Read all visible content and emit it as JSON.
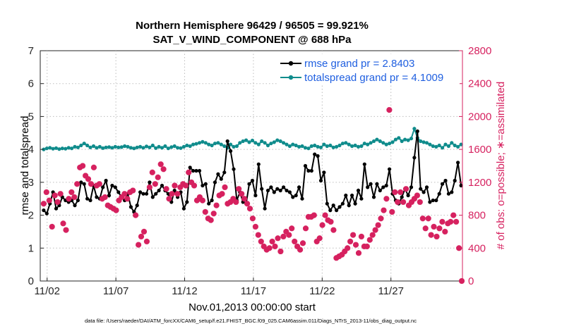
{
  "chart_data": {
    "type": "line",
    "title": "Northern Hemisphere 96429 / 96505 = 99.921%",
    "subtitle": "SAT_V_WIND_COMPONENT @ 688 hPa",
    "xlabel": "Nov.01,2013 00:00:00 start",
    "ylabel_left": "rmse and totalspread",
    "ylabel_right": "# of obs: o=possible; ∗=assimilated",
    "ylim_left": [
      0,
      7
    ],
    "ylim_right": [
      0,
      2800
    ],
    "yticks_left": [
      "0",
      "1",
      "2",
      "3",
      "4",
      "5",
      "6",
      "7"
    ],
    "yticks_right": [
      "0",
      "400",
      "800",
      "1200",
      "1600",
      "2000",
      "2400",
      "2800"
    ],
    "xlim_days": [
      0.5,
      31.2
    ],
    "xtick_days": [
      1,
      6,
      11,
      16,
      21,
      26
    ],
    "xticks": [
      "11/02",
      "11/07",
      "11/12",
      "11/17",
      "11/22",
      "11/27"
    ],
    "series": [
      {
        "name": "rmse grand pr = 2.8403",
        "color": "#000000",
        "axis": "left",
        "values": [
          2.15,
          2.05,
          2.35,
          2.7,
          2.2,
          2.3,
          2.55,
          2.45,
          2.4,
          2.45,
          2.3,
          2.45,
          3.0,
          2.95,
          2.5,
          2.45,
          2.9,
          2.55,
          2.5,
          2.85,
          3.05,
          2.6,
          2.9,
          2.85,
          2.7,
          2.55,
          2.45,
          2.65,
          2.25,
          2.1,
          2.3,
          2.7,
          2.65,
          2.65,
          3.0,
          2.55,
          2.65,
          2.75,
          2.9,
          2.75,
          2.65,
          2.4,
          2.75,
          2.55,
          2.7,
          2.2,
          2.4,
          3.45,
          3.35,
          3.35,
          3.35,
          2.9,
          2.95,
          2.35,
          2.45,
          3.0,
          3.25,
          3.1,
          3.3,
          4.25,
          3.95,
          3.4,
          2.45,
          2.7,
          2.4,
          2.35,
          2.95,
          3.05,
          2.6,
          3.55,
          2.8,
          2.2,
          2.75,
          2.85,
          2.7,
          2.8,
          2.75,
          2.85,
          2.75,
          2.7,
          2.55,
          2.6,
          2.85,
          2.5,
          3.5,
          3.35,
          3.35,
          3.85,
          3.8,
          3.05,
          3.3,
          2.35,
          2.15,
          2.3,
          2.15,
          2.25,
          2.35,
          2.6,
          2.3,
          2.6,
          2.35,
          2.75,
          2.5,
          3.55,
          2.85,
          2.95,
          2.55,
          2.95,
          2.75,
          2.85,
          2.9,
          3.4,
          2.65,
          2.45,
          2.35,
          2.55,
          2.8,
          2.6,
          2.85,
          3.75,
          4.55,
          2.8,
          2.7,
          2.85,
          2.4,
          2.45,
          2.45,
          2.65,
          2.95,
          3.05,
          2.65,
          2.7,
          3.05,
          3.6,
          2.9
        ]
      },
      {
        "name": "totalspread grand pr = 4.1009",
        "color": "#108c8c",
        "axis": "left",
        "values": [
          4.0,
          4.03,
          4.05,
          4.02,
          4.04,
          4.01,
          4.03,
          4.02,
          4.05,
          4.03,
          4.08,
          4.06,
          4.12,
          4.18,
          4.12,
          4.06,
          4.1,
          4.05,
          4.08,
          4.04,
          4.06,
          4.07,
          4.05,
          4.08,
          4.06,
          4.07,
          4.1,
          4.08,
          4.05,
          4.03,
          4.06,
          4.08,
          4.05,
          4.09,
          4.06,
          4.12,
          4.04,
          4.08,
          4.05,
          4.1,
          4.03,
          4.07,
          4.1,
          4.05,
          4.04,
          4.08,
          4.12,
          4.1,
          4.15,
          4.17,
          4.2,
          4.23,
          4.2,
          4.15,
          4.12,
          4.18,
          4.2,
          4.15,
          4.1,
          4.05,
          4.15,
          4.08,
          4.1,
          4.2,
          4.25,
          4.28,
          4.22,
          4.27,
          4.2,
          4.15,
          4.25,
          4.2,
          4.12,
          4.18,
          4.22,
          4.28,
          4.25,
          4.2,
          4.15,
          4.1,
          4.15,
          4.12,
          4.08,
          4.1,
          4.05,
          4.03,
          4.1,
          4.12,
          4.08,
          4.06,
          4.15,
          4.1,
          4.12,
          4.06,
          4.08,
          4.12,
          4.18,
          4.2,
          4.15,
          4.1,
          4.12,
          4.08,
          4.1,
          4.18,
          4.15,
          4.2,
          4.25,
          4.3,
          4.25,
          4.2,
          4.15,
          4.18,
          4.22,
          4.3,
          4.35,
          4.25,
          4.3,
          4.28,
          4.33,
          4.63,
          4.35,
          4.25,
          4.22,
          4.2,
          4.15,
          4.1,
          4.08,
          4.12,
          4.05,
          4.15,
          4.1,
          4.2,
          4.12,
          4.08,
          4.15
        ]
      },
      {
        "name": "obs assimilated",
        "color": "#d6215f",
        "axis": "right",
        "marker": "*",
        "values": [
          940,
          1080,
          980,
          660,
          1040,
          960,
          1060,
          700,
          620,
          1000,
          1080,
          1020,
          1180,
          1380,
          1400,
          1280,
          1240,
          1180,
          1380,
          1160,
          1180,
          1000,
          1020,
          920,
          900,
          880,
          860,
          980,
          1020,
          1060,
          1000,
          1080,
          1100,
          800,
          440,
          540,
          600,
          480,
          1140,
          1320,
          1180,
          1260,
          1420,
          1360,
          1120,
          1000,
          1060,
          1160,
          1060,
          1140,
          1180,
          1160,
          1320,
          1200,
          1160,
          980,
          1020,
          980,
          840,
          760,
          740,
          820,
          920,
          1040,
          1060,
          1140,
          940,
          960,
          1000,
          960,
          1120,
          1060,
          1000,
          940,
          880,
          760,
          660,
          560,
          480,
          420,
          380,
          400,
          480,
          420,
          520,
          360,
          540,
          600,
          560,
          640,
          480,
          420,
          380,
          460,
          640,
          780,
          780,
          800,
          480,
          520,
          680,
          800,
          740,
          720,
          620,
          280,
          300,
          320,
          360,
          400,
          480,
          560,
          440,
          340,
          540,
          420,
          420,
          500,
          560,
          620,
          680,
          760,
          860,
          1000,
          2080,
          840,
          1080,
          960,
          1080,
          960,
          1120,
          920,
          960,
          1000,
          1040,
          960,
          760,
          640,
          760,
          560,
          660,
          540,
          640,
          720,
          600,
          700,
          720,
          800,
          720,
          400,
          0
        ]
      }
    ],
    "legend": "top-right",
    "footnote": "data file: /Users/raeder/DAI/ATM_forcXX/CAM6_setup/f.e21.FHIST_BGC.f09_025.CAM6assim.011/Diags_NTrS_2013-11/obs_diag_output.nc"
  }
}
